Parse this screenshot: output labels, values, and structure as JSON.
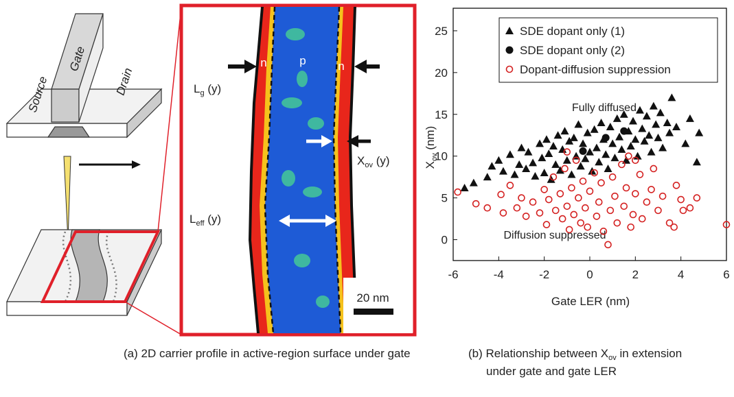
{
  "panel_a": {
    "source": "Source",
    "gate": "Gate",
    "drain": "Drain",
    "n_left": "n",
    "p": "p",
    "n_right": "n",
    "lg": {
      "main": "L",
      "sub": "g",
      "rest": " (y)"
    },
    "xov": {
      "main": "X",
      "sub": "ov",
      "rest": " (y)"
    },
    "leff": {
      "main": "L",
      "sub": "eff",
      "rest": " (y)"
    },
    "scale": "20 nm"
  },
  "chart_data": {
    "type": "scatter",
    "xlabel": "Gate LER (nm)",
    "ylabel": {
      "main": "X",
      "sub": "ov",
      "rest": " (nm)"
    },
    "xlim": [
      -6,
      6
    ],
    "ylim": [
      -2.5,
      27.7
    ],
    "xticks": [
      -6,
      -4,
      -2,
      0,
      2,
      4,
      6
    ],
    "yticks": [
      0,
      5,
      10,
      15,
      20,
      25
    ],
    "legend": "upper-left",
    "annotations": [
      "Fully diffused",
      "Diffusion suppressed"
    ],
    "series": [
      {
        "name": "SDE dopant only (1)",
        "color": "#111111",
        "marker": "triangle",
        "x": [
          -5.5,
          -5.1,
          -4.5,
          -4.3,
          -4.0,
          -3.8,
          -3.5,
          -3.3,
          -3.1,
          -3.0,
          -2.8,
          -2.7,
          -2.5,
          -2.4,
          -2.2,
          -2.1,
          -2.0,
          -1.9,
          -1.8,
          -1.7,
          -1.6,
          -1.5,
          -1.4,
          -1.3,
          -1.2,
          -1.1,
          -1.0,
          -0.9,
          -0.8,
          -0.7,
          -0.6,
          -0.5,
          -0.4,
          -0.3,
          -0.2,
          -0.1,
          0.0,
          0.1,
          0.2,
          0.3,
          0.4,
          0.5,
          0.6,
          0.7,
          0.8,
          0.9,
          1.0,
          1.1,
          1.2,
          1.3,
          1.4,
          1.5,
          1.6,
          1.7,
          1.8,
          1.9,
          2.0,
          2.1,
          2.2,
          2.3,
          2.4,
          2.5,
          2.6,
          2.7,
          2.8,
          2.9,
          3.0,
          3.1,
          3.2,
          3.4,
          3.5,
          3.6,
          3.8,
          4.2,
          4.4,
          4.7,
          4.8
        ],
        "values": [
          6.2,
          6.8,
          7.5,
          8.8,
          9.5,
          8.2,
          10.2,
          7.8,
          9.0,
          11.0,
          8.5,
          10.5,
          9.2,
          7.6,
          11.5,
          9.8,
          8.0,
          12.0,
          10.3,
          7.2,
          11.2,
          9.0,
          12.5,
          8.3,
          10.8,
          13.0,
          9.5,
          11.8,
          7.8,
          12.2,
          10.0,
          13.8,
          8.8,
          11.5,
          9.7,
          12.8,
          10.5,
          8.2,
          13.2,
          11.0,
          9.3,
          14.0,
          12.0,
          10.2,
          8.5,
          13.5,
          11.5,
          9.8,
          14.5,
          12.3,
          10.8,
          15.0,
          9.5,
          13.0,
          11.2,
          14.2,
          12.0,
          10.0,
          15.5,
          13.3,
          11.8,
          14.8,
          12.5,
          10.5,
          16.0,
          13.8,
          12.2,
          15.2,
          11.0,
          14.0,
          12.8,
          17.0,
          13.5,
          11.5,
          14.5,
          9.3,
          12.8
        ]
      },
      {
        "name": "SDE dopant only (2)",
        "color": "#111111",
        "marker": "circle",
        "x": [
          1.5,
          -0.3,
          0.7
        ],
        "values": [
          13.0,
          10.6,
          12.2
        ]
      },
      {
        "name": "Dopant-diffusion suppression",
        "color": "#d42020",
        "marker": "open-circle",
        "x": [
          -5.8,
          -5.0,
          -4.5,
          -3.9,
          -3.8,
          -3.5,
          -3.2,
          -3.0,
          -2.8,
          -2.5,
          -2.2,
          -2.0,
          -1.9,
          -1.8,
          -1.6,
          -1.5,
          -1.3,
          -1.2,
          -1.1,
          -1.0,
          -0.9,
          -0.8,
          -0.7,
          -0.6,
          -0.5,
          -0.4,
          -0.3,
          -0.2,
          -0.1,
          0.0,
          0.2,
          0.3,
          0.4,
          0.5,
          0.6,
          0.8,
          0.9,
          1.0,
          1.1,
          1.2,
          1.4,
          1.5,
          1.6,
          1.8,
          1.9,
          2.0,
          2.2,
          2.3,
          2.5,
          2.7,
          2.8,
          3.0,
          3.2,
          3.5,
          3.8,
          4.0,
          4.1,
          4.4,
          4.7,
          3.7,
          6.0,
          1.7,
          -1.0,
          2.0
        ],
        "values": [
          5.7,
          4.3,
          3.8,
          5.4,
          3.2,
          6.5,
          3.8,
          5.0,
          2.8,
          4.5,
          3.2,
          6.0,
          1.8,
          4.8,
          7.5,
          3.5,
          5.5,
          2.5,
          8.5,
          4.0,
          1.2,
          6.2,
          3.0,
          9.5,
          5.0,
          2.0,
          7.0,
          3.8,
          1.5,
          5.8,
          8.0,
          2.8,
          4.5,
          6.8,
          1.0,
          -0.6,
          3.5,
          7.5,
          5.2,
          2.0,
          9.0,
          4.0,
          6.2,
          1.5,
          3.0,
          5.5,
          7.8,
          2.5,
          4.5,
          6.0,
          8.5,
          3.5,
          5.2,
          2.0,
          6.5,
          4.8,
          3.5,
          3.8,
          5.0,
          1.5,
          1.8,
          10.0,
          10.5,
          9.5
        ]
      }
    ]
  },
  "captions": {
    "a": "(a) 2D carrier profile in active-region surface under gate",
    "b": {
      "line1_start": "(b) Relationship between X",
      "sub": "ov",
      "line1_end": " in extension",
      "line2": "under gate and gate LER"
    }
  }
}
